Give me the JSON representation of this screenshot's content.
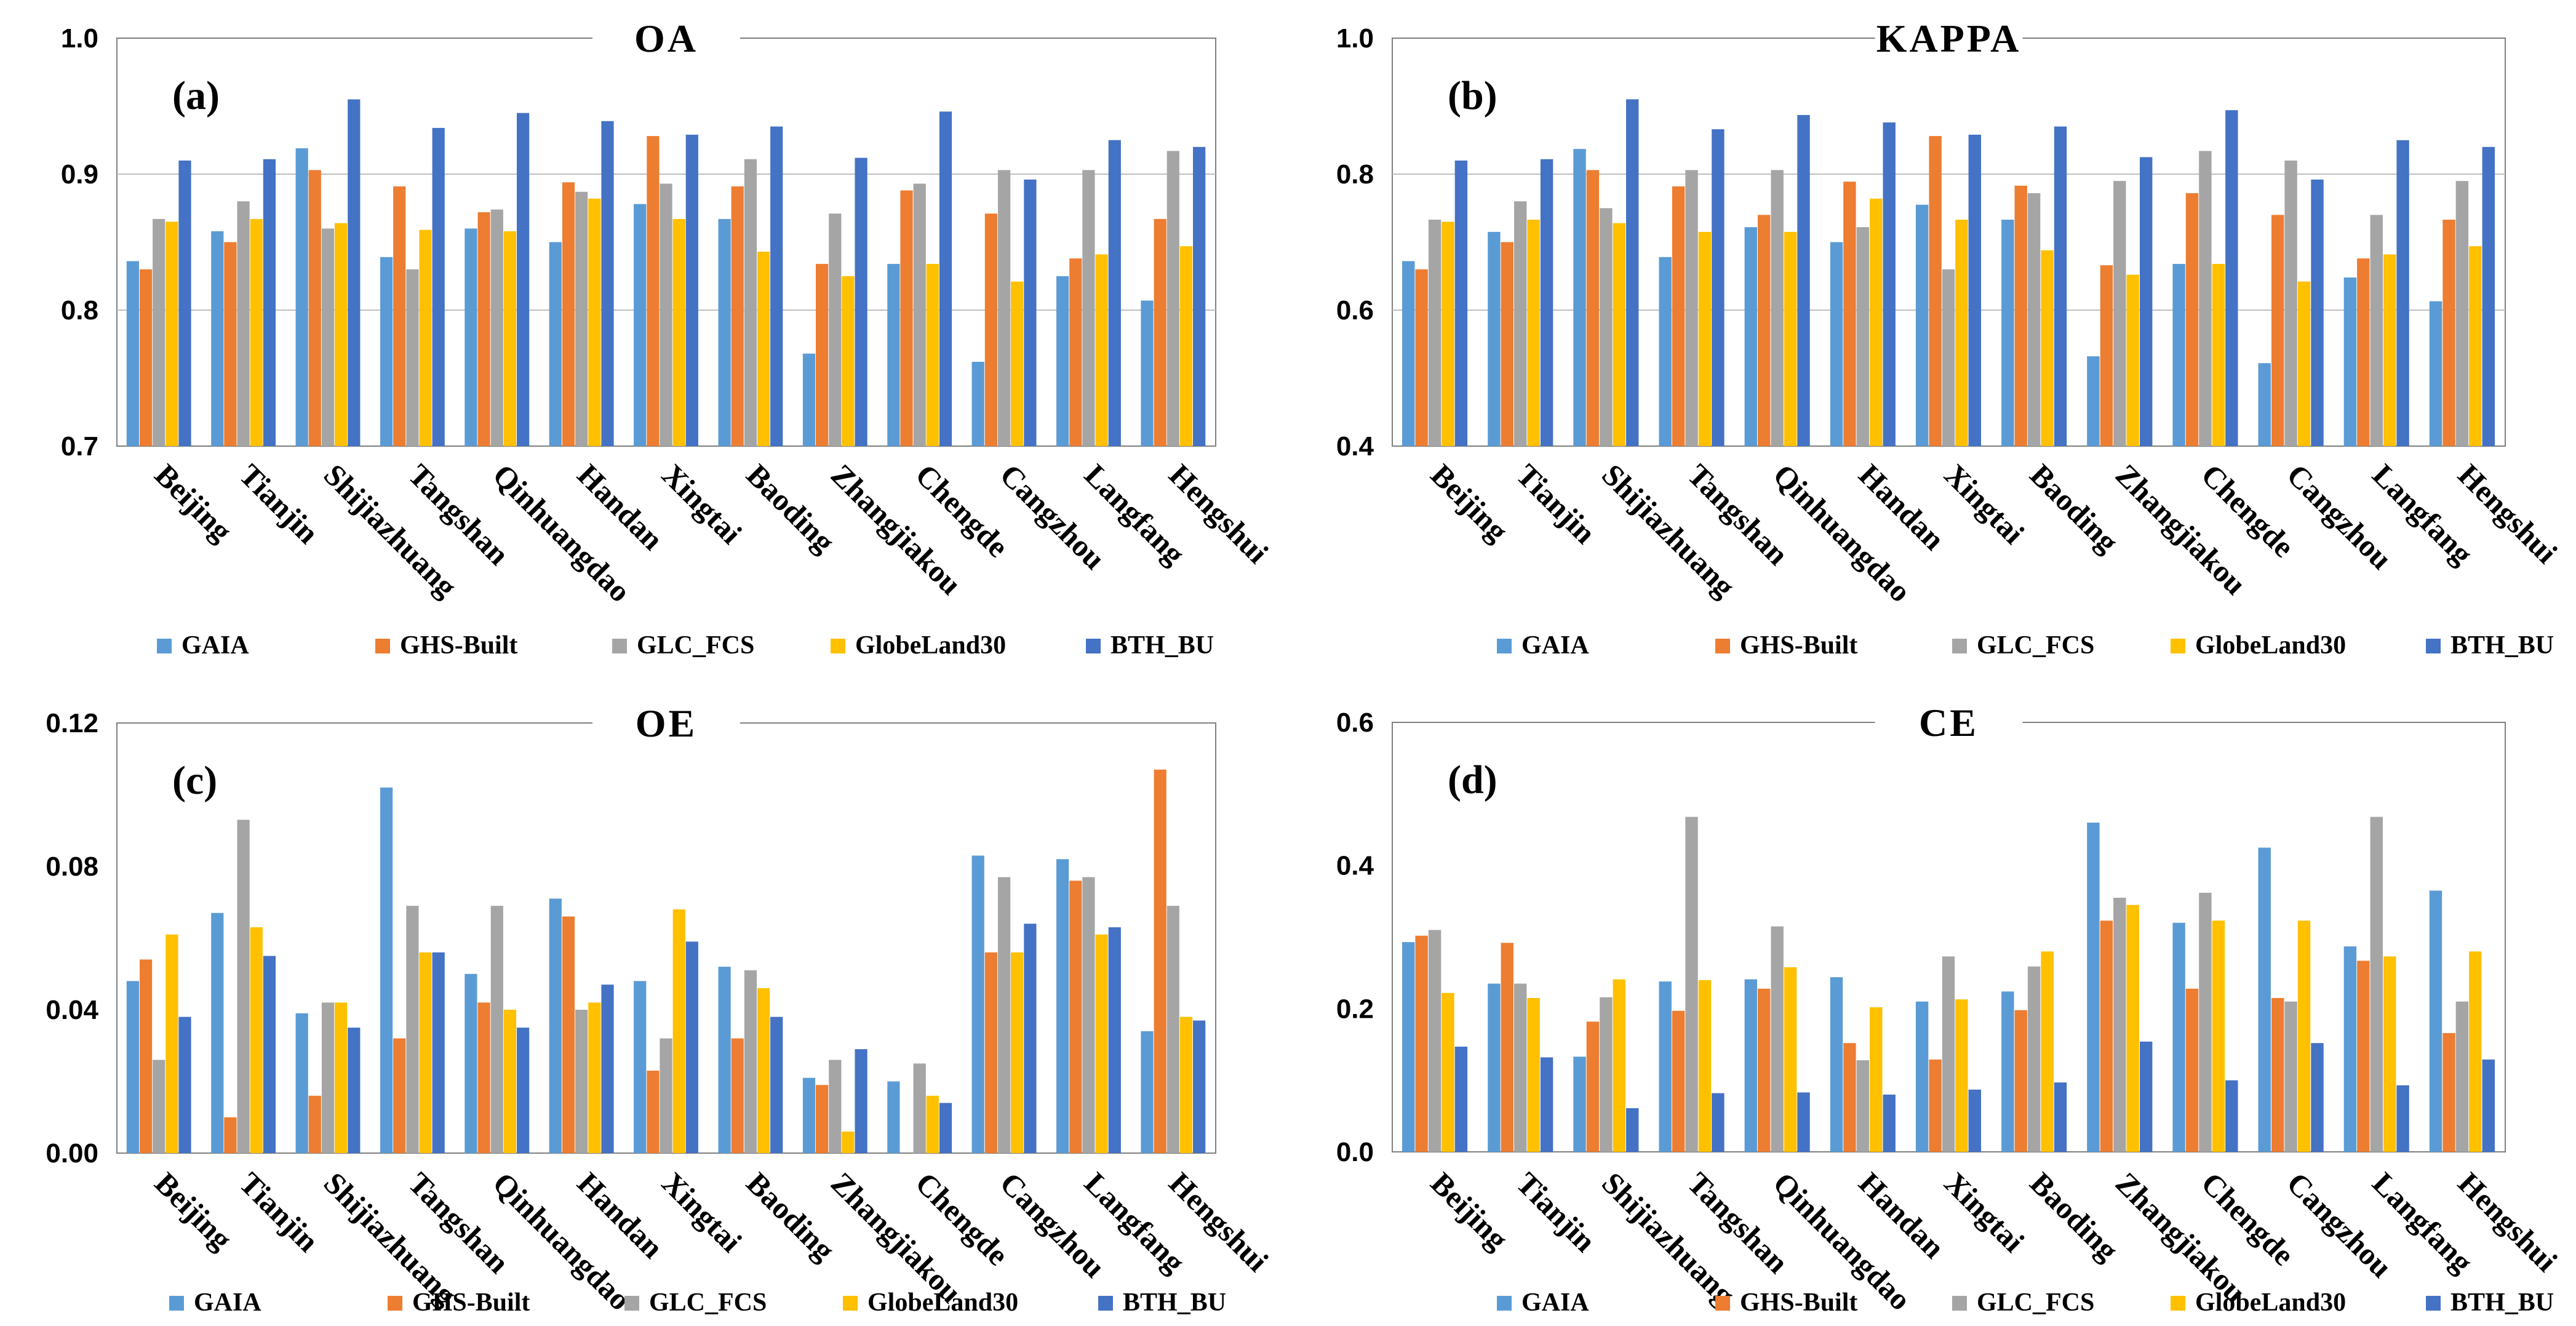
{
  "figure": {
    "series_names": [
      "GAIA",
      "GHS-Built",
      "GLC_FCS",
      "GlobeLand30",
      "BTH_BU"
    ],
    "series_colors": [
      "#5B9BD5",
      "#ED7D31",
      "#A5A5A5",
      "#FFC000",
      "#4472C4"
    ]
  },
  "chart_data": [
    {
      "type": "bar",
      "title": "OA",
      "panel_label": "(a)",
      "categories": [
        "Beijing",
        "Tianjin",
        "Shijiazhuang",
        "Tangshan",
        "Qinhuangdao",
        "Handan",
        "Xingtai",
        "Baoding",
        "Zhangjiakou",
        "Chengde",
        "Cangzhou",
        "Langfang",
        "Hengshui"
      ],
      "ylim": [
        0.7,
        1.0
      ],
      "yticks": [
        0.7,
        0.8,
        0.9,
        1.0
      ],
      "ytick_labels": [
        "0.7",
        "0.8",
        "0.9",
        "1.0"
      ],
      "grid": true,
      "legend": "bottom",
      "series": [
        {
          "name": "GAIA",
          "values": [
            0.836,
            0.858,
            0.919,
            0.839,
            0.86,
            0.85,
            0.878,
            0.867,
            0.768,
            0.834,
            0.762,
            0.825,
            0.807
          ]
        },
        {
          "name": "GHS-Built",
          "values": [
            0.83,
            0.85,
            0.903,
            0.891,
            0.872,
            0.894,
            0.928,
            0.891,
            0.834,
            0.888,
            0.871,
            0.838,
            0.867
          ]
        },
        {
          "name": "GLC_FCS",
          "values": [
            0.867,
            0.88,
            0.86,
            0.83,
            0.874,
            0.887,
            0.893,
            0.911,
            0.871,
            0.893,
            0.903,
            0.903,
            0.917
          ]
        },
        {
          "name": "GlobeLand30",
          "values": [
            0.865,
            0.867,
            0.864,
            0.859,
            0.858,
            0.882,
            0.867,
            0.843,
            0.825,
            0.834,
            0.821,
            0.841,
            0.847
          ]
        },
        {
          "name": "BTH_BU",
          "values": [
            0.91,
            0.911,
            0.955,
            0.934,
            0.945,
            0.939,
            0.929,
            0.935,
            0.912,
            0.946,
            0.896,
            0.925,
            0.92
          ]
        }
      ]
    },
    {
      "type": "bar",
      "title": "KAPPA",
      "panel_label": "(b)",
      "categories": [
        "Beijing",
        "Tianjin",
        "Shijiazhuang",
        "Tangshan",
        "Qinhuangdao",
        "Handan",
        "Xingtai",
        "Baoding",
        "Zhangjiakou",
        "Chengde",
        "Cangzhou",
        "Langfang",
        "Hengshui"
      ],
      "ylim": [
        0.4,
        1.0
      ],
      "yticks": [
        0.4,
        0.6,
        0.8,
        1.0
      ],
      "ytick_labels": [
        "0.4",
        "0.6",
        "0.8",
        "1.0"
      ],
      "grid": true,
      "legend": "bottom",
      "series": [
        {
          "name": "GAIA",
          "values": [
            0.672,
            0.715,
            0.837,
            0.678,
            0.722,
            0.7,
            0.755,
            0.733,
            0.532,
            0.668,
            0.522,
            0.648,
            0.613
          ]
        },
        {
          "name": "GHS-Built",
          "values": [
            0.66,
            0.7,
            0.806,
            0.782,
            0.74,
            0.789,
            0.856,
            0.783,
            0.666,
            0.772,
            0.74,
            0.676,
            0.733
          ]
        },
        {
          "name": "GLC_FCS",
          "values": [
            0.733,
            0.76,
            0.75,
            0.806,
            0.806,
            0.722,
            0.66,
            0.772,
            0.79,
            0.834,
            0.82,
            0.74,
            0.79
          ]
        },
        {
          "name": "GlobeLand30",
          "values": [
            0.73,
            0.733,
            0.728,
            0.715,
            0.715,
            0.764,
            0.733,
            0.688,
            0.652,
            0.668,
            0.642,
            0.682,
            0.694
          ]
        },
        {
          "name": "BTH_BU",
          "values": [
            0.82,
            0.822,
            0.91,
            0.866,
            0.887,
            0.876,
            0.858,
            0.87,
            0.825,
            0.894,
            0.792,
            0.85,
            0.84
          ]
        }
      ]
    },
    {
      "type": "bar",
      "title": "OE",
      "panel_label": "(c)",
      "categories": [
        "Beijing",
        "Tianjin",
        "Shijiazhuang",
        "Tangshan",
        "Qinhuangdao",
        "Handan",
        "Xingtai",
        "Baoding",
        "Zhangjiakou",
        "Chengde",
        "Cangzhou",
        "Langfang",
        "Hengshui"
      ],
      "ylim": [
        0,
        0.12
      ],
      "yticks": [
        0,
        0.04,
        0.08,
        0.12
      ],
      "ytick_labels": [
        "0.00",
        "0.04",
        "0.08",
        "0.12"
      ],
      "grid": false,
      "legend": "bottom",
      "series": [
        {
          "name": "GAIA",
          "values": [
            0.048,
            0.067,
            0.039,
            0.102,
            0.05,
            0.071,
            0.048,
            0.052,
            0.021,
            0.02,
            0.083,
            0.082,
            0.034
          ]
        },
        {
          "name": "GHS-Built",
          "values": [
            0.054,
            0.01,
            0.016,
            0.032,
            0.042,
            0.066,
            0.023,
            0.032,
            0.019,
            0.0,
            0.056,
            0.076,
            0.107
          ]
        },
        {
          "name": "GLC_FCS",
          "values": [
            0.026,
            0.093,
            0.042,
            0.069,
            0.069,
            0.04,
            0.032,
            0.051,
            0.026,
            0.025,
            0.077,
            0.077,
            0.069
          ]
        },
        {
          "name": "GlobeLand30",
          "values": [
            0.061,
            0.063,
            0.042,
            0.056,
            0.04,
            0.042,
            0.068,
            0.046,
            0.006,
            0.016,
            0.056,
            0.061,
            0.038
          ]
        },
        {
          "name": "BTH_BU",
          "values": [
            0.038,
            0.055,
            0.035,
            0.056,
            0.035,
            0.047,
            0.059,
            0.038,
            0.029,
            0.014,
            0.064,
            0.063,
            0.037
          ]
        }
      ]
    },
    {
      "type": "bar",
      "title": "CE",
      "panel_label": "(d)",
      "categories": [
        "Beijing",
        "Tianjin",
        "Shijiazhuang",
        "Tangshan",
        "Qinhuangdao",
        "Handan",
        "Xingtai",
        "Baoding",
        "Zhangjiakou",
        "Chengde",
        "Cangzhou",
        "Langfang",
        "Hengshui"
      ],
      "ylim": [
        0,
        0.6
      ],
      "yticks": [
        0,
        0.2,
        0.4,
        0.6
      ],
      "ytick_labels": [
        "0.0",
        "0.2",
        "0.4",
        "0.6"
      ],
      "grid": false,
      "legend": "bottom",
      "series": [
        {
          "name": "GAIA",
          "values": [
            0.293,
            0.235,
            0.133,
            0.238,
            0.241,
            0.244,
            0.21,
            0.224,
            0.46,
            0.32,
            0.425,
            0.287,
            0.365
          ]
        },
        {
          "name": "GHS-Built",
          "values": [
            0.302,
            0.292,
            0.182,
            0.197,
            0.228,
            0.152,
            0.129,
            0.198,
            0.323,
            0.228,
            0.215,
            0.267,
            0.166
          ]
        },
        {
          "name": "GLC_FCS",
          "values": [
            0.31,
            0.235,
            0.216,
            0.468,
            0.315,
            0.128,
            0.273,
            0.259,
            0.355,
            0.362,
            0.21,
            0.468,
            0.21
          ]
        },
        {
          "name": "GlobeLand30",
          "values": [
            0.222,
            0.215,
            0.241,
            0.24,
            0.258,
            0.202,
            0.213,
            0.28,
            0.345,
            0.323,
            0.323,
            0.273,
            0.28
          ]
        },
        {
          "name": "BTH_BU",
          "values": [
            0.147,
            0.132,
            0.061,
            0.082,
            0.083,
            0.08,
            0.087,
            0.097,
            0.154,
            0.1,
            0.152,
            0.093,
            0.129
          ]
        }
      ]
    }
  ]
}
